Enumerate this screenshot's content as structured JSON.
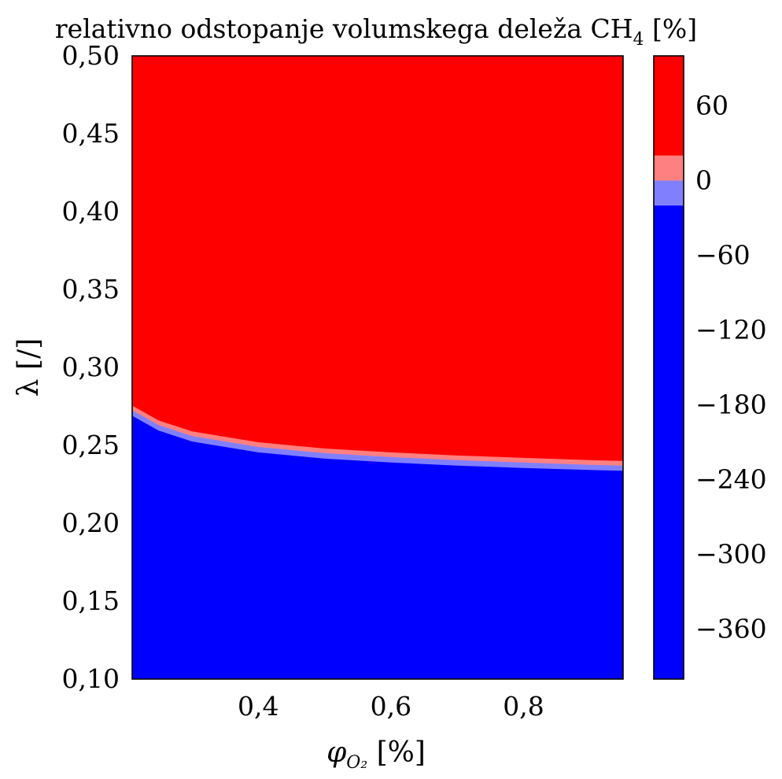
{
  "chart_data": {
    "type": "heatmap",
    "title": "relativno odstopanje volumskega deleža CH",
    "title_subscript": "4",
    "title_suffix": " [%]",
    "xlabel": "φ",
    "xlabel_subscript": "O₂",
    "xlabel_suffix": " [%]",
    "ylabel": "λ [/]",
    "xlim": [
      0.21,
      0.95
    ],
    "ylim": [
      0.1,
      0.5
    ],
    "x_ticks": [
      {
        "value": 0.4,
        "label": "0,4"
      },
      {
        "value": 0.6,
        "label": "0,6"
      },
      {
        "value": 0.8,
        "label": "0,8"
      }
    ],
    "y_ticks": [
      {
        "value": 0.1,
        "label": "0,10"
      },
      {
        "value": 0.15,
        "label": "0,15"
      },
      {
        "value": 0.2,
        "label": "0,20"
      },
      {
        "value": 0.25,
        "label": "0,25"
      },
      {
        "value": 0.3,
        "label": "0,30"
      },
      {
        "value": 0.35,
        "label": "0,35"
      },
      {
        "value": 0.4,
        "label": "0,40"
      },
      {
        "value": 0.45,
        "label": "0,45"
      },
      {
        "value": 0.5,
        "label": "0,50"
      }
    ],
    "colorbar": {
      "range": [
        -400,
        100
      ],
      "ticks": [
        {
          "value": 60,
          "label": "60"
        },
        {
          "value": 0,
          "label": "0"
        },
        {
          "value": -60,
          "label": "−60"
        },
        {
          "value": -120,
          "label": "−120"
        },
        {
          "value": -180,
          "label": "−180"
        },
        {
          "value": -240,
          "label": "−240"
        },
        {
          "value": -300,
          "label": "−300"
        },
        {
          "value": -360,
          "label": "−360"
        }
      ],
      "bands": [
        {
          "from": -400,
          "to": -20,
          "color": "#0000ff"
        },
        {
          "from": -20,
          "to": 0,
          "color": "#8080ff"
        },
        {
          "from": 0,
          "to": 20,
          "color": "#ff8080"
        },
        {
          "from": 20,
          "to": 100,
          "color": "#ff0000"
        }
      ]
    },
    "contour_boundaries": [
      {
        "level": 20,
        "points": [
          [
            0.21,
            0.2755
          ],
          [
            0.25,
            0.266
          ],
          [
            0.3,
            0.259
          ],
          [
            0.4,
            0.252
          ],
          [
            0.5,
            0.248
          ],
          [
            0.6,
            0.2455
          ],
          [
            0.7,
            0.2435
          ],
          [
            0.8,
            0.242
          ],
          [
            0.9,
            0.2405
          ],
          [
            0.95,
            0.24
          ]
        ]
      },
      {
        "level": 0,
        "points": [
          [
            0.21,
            0.2725
          ],
          [
            0.25,
            0.263
          ],
          [
            0.3,
            0.256
          ],
          [
            0.4,
            0.249
          ],
          [
            0.5,
            0.245
          ],
          [
            0.6,
            0.2425
          ],
          [
            0.7,
            0.2405
          ],
          [
            0.8,
            0.239
          ],
          [
            0.9,
            0.2375
          ],
          [
            0.95,
            0.237
          ]
        ]
      },
      {
        "level": -20,
        "points": [
          [
            0.21,
            0.269
          ],
          [
            0.25,
            0.2595
          ],
          [
            0.3,
            0.2525
          ],
          [
            0.4,
            0.2455
          ],
          [
            0.5,
            0.2415
          ],
          [
            0.6,
            0.239
          ],
          [
            0.7,
            0.237
          ],
          [
            0.8,
            0.2355
          ],
          [
            0.9,
            0.2342
          ],
          [
            0.95,
            0.2337
          ]
        ]
      }
    ]
  }
}
